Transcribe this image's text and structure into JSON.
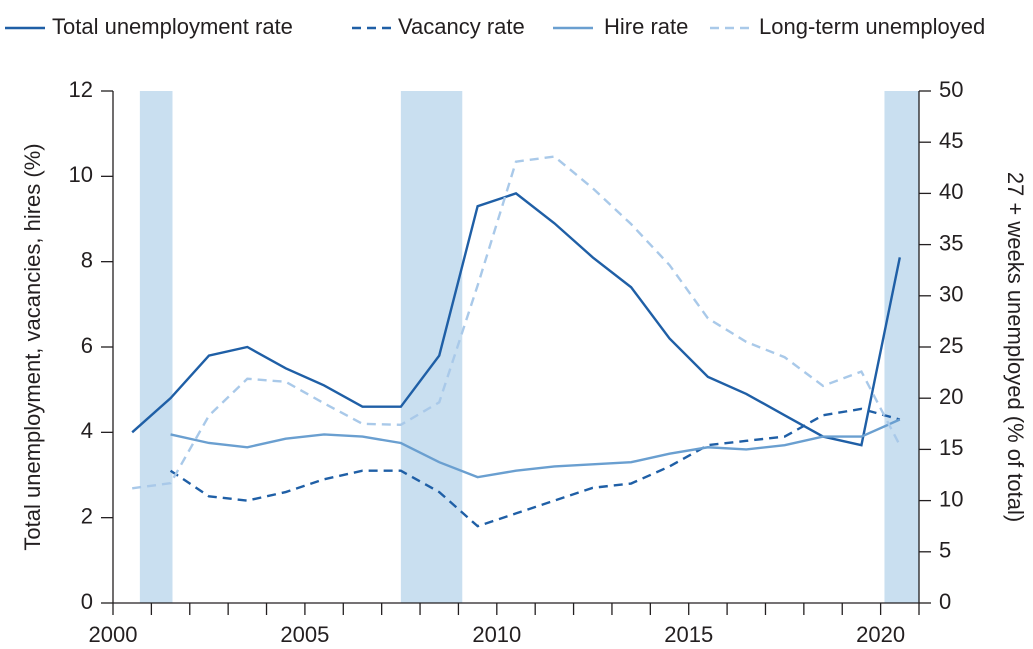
{
  "chart_data": {
    "type": "line",
    "x": [
      2000.5,
      2001.5,
      2002.5,
      2003.5,
      2004.5,
      2005.5,
      2006.5,
      2007.5,
      2008.5,
      2009.5,
      2010.5,
      2011.5,
      2012.5,
      2013.5,
      2014.5,
      2015.5,
      2016.5,
      2017.5,
      2018.5,
      2019.5,
      2020.5
    ],
    "series": [
      {
        "name": "Total unemployment rate",
        "color": "#1f5fa6",
        "dash": false,
        "axis": "y",
        "values": [
          4.0,
          4.8,
          5.8,
          6.0,
          5.5,
          5.1,
          4.6,
          4.6,
          5.8,
          9.3,
          9.6,
          8.9,
          8.1,
          7.4,
          6.2,
          5.3,
          4.9,
          4.4,
          3.9,
          3.7,
          8.1
        ]
      },
      {
        "name": "Vacancy rate",
        "color": "#1f5fa6",
        "dash": true,
        "axis": "y",
        "values": [
          null,
          3.1,
          2.5,
          2.4,
          2.6,
          2.9,
          3.1,
          3.1,
          2.6,
          1.8,
          2.1,
          2.4,
          2.7,
          2.8,
          3.2,
          3.7,
          3.8,
          3.9,
          4.4,
          4.55,
          4.3
        ]
      },
      {
        "name": "Hire rate",
        "color": "#6a9fd0",
        "dash": false,
        "axis": "y",
        "values": [
          null,
          3.95,
          3.75,
          3.65,
          3.85,
          3.95,
          3.9,
          3.75,
          3.3,
          2.95,
          3.1,
          3.2,
          3.25,
          3.3,
          3.5,
          3.65,
          3.6,
          3.7,
          3.9,
          3.9,
          4.3
        ]
      },
      {
        "name": "Long-term unemployed",
        "color": "#a9c9e9",
        "dash": true,
        "axis": "y2",
        "values": [
          11.2,
          11.7,
          18.3,
          21.9,
          21.6,
          19.5,
          17.5,
          17.4,
          19.6,
          31.0,
          43.1,
          43.6,
          40.5,
          37.0,
          33.0,
          27.8,
          25.5,
          24.0,
          21.2,
          22.6,
          15.4
        ]
      }
    ],
    "recessions": [
      {
        "start": 2000.7,
        "end": 2001.55
      },
      {
        "start": 2007.5,
        "end": 2009.1
      },
      {
        "start": 2020.1,
        "end": 2021
      }
    ],
    "recession_color": "#c9dff0",
    "xlim": [
      2000,
      2021
    ],
    "xticks": [
      2000,
      2005,
      2010,
      2015,
      2020
    ],
    "xminor_ticks": [
      2001,
      2002,
      2003,
      2004,
      2006,
      2007,
      2008,
      2009,
      2011,
      2012,
      2013,
      2014,
      2016,
      2017,
      2018,
      2019,
      2021
    ],
    "ylim": [
      0,
      12
    ],
    "yticks": [
      0,
      2,
      4,
      6,
      8,
      10,
      12
    ],
    "y2lim": [
      0,
      50
    ],
    "y2ticks": [
      0,
      5,
      10,
      15,
      20,
      25,
      30,
      35,
      40,
      45,
      50
    ],
    "ylabel": "Total  unemployment, vacancies, hires (%)",
    "y2label": "27 + weeks unemployed (% of total)",
    "legend": "top"
  }
}
